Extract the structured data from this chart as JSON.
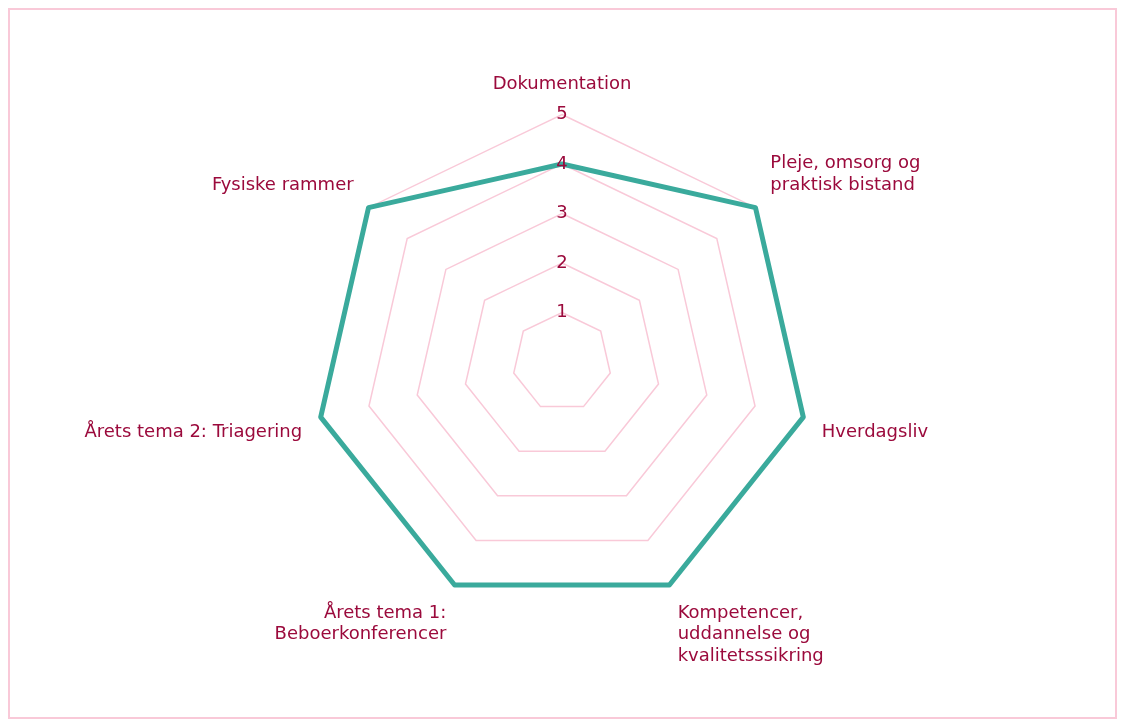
{
  "chart_data": {
    "type": "radar",
    "categories": [
      "Dokumentation",
      "Pleje, omsorg og\npraktisk bistand",
      "Hverdagsliv",
      "Kompetencer,\nuddannelse og\nkvalitetsssikring",
      "Årets tema 1:\nBeboerkonferencer",
      "Årets tema 2: Triagering",
      "Fysiske rammer"
    ],
    "series": [
      {
        "color": "#3aaa9c",
        "values": [
          4,
          5,
          5,
          5,
          5,
          5,
          5
        ]
      }
    ],
    "ylim": [
      0,
      5
    ],
    "yticks": [
      1,
      2,
      3,
      4,
      5
    ],
    "grid": true,
    "legend": false,
    "marker": "none",
    "line_style": "solid"
  }
}
